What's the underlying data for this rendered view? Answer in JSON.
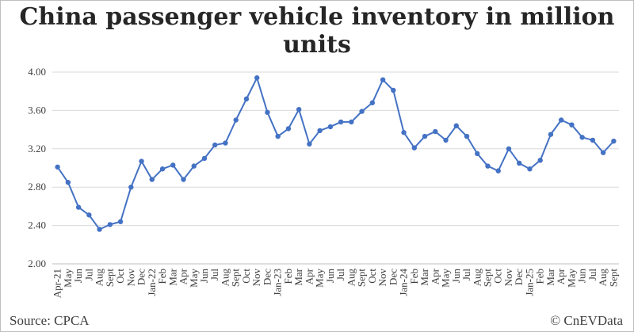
{
  "title": "China passenger vehicle inventory in million units",
  "source": "Source: CPCA",
  "credit": "© CnEVData",
  "colors": {
    "line": "#4472c4",
    "grid": "#d9d9d9",
    "text": "#404040"
  },
  "chart_data": {
    "type": "line",
    "title": "China passenger vehicle inventory in million units",
    "xlabel": "",
    "ylabel": "",
    "ylim": [
      2.0,
      4.0
    ],
    "yticks": [
      "2.00",
      "2.40",
      "2.80",
      "3.20",
      "3.60",
      "4.00"
    ],
    "grid": true,
    "categories": [
      "Apr-21",
      "May",
      "Jun",
      "Jul",
      "Aug",
      "Sept",
      "Oct",
      "Nov",
      "Dec",
      "Jan-22",
      "Feb",
      "Mar",
      "Apr",
      "May",
      "Jun",
      "Jul",
      "Aug",
      "Sept",
      "Oct",
      "Nov",
      "Dec",
      "Jan-23",
      "Feb",
      "Mar",
      "Apr",
      "May",
      "Jun",
      "Jul",
      "Aug",
      "Sept",
      "Oct",
      "Nov",
      "Dec",
      "Jan-24",
      "Feb",
      "Mar",
      "Apr",
      "May",
      "Jun",
      "Jul",
      "Aug",
      "Sept",
      "Oct",
      "Nov",
      "Dec",
      "Jan-25",
      "Feb",
      "Mar",
      "Apr",
      "May",
      "Jun",
      "Jul",
      "Aug",
      "Sept"
    ],
    "values": [
      3.01,
      2.85,
      2.59,
      2.51,
      2.36,
      2.41,
      2.44,
      2.8,
      3.07,
      2.88,
      2.99,
      3.03,
      2.88,
      3.02,
      3.1,
      3.24,
      3.26,
      3.5,
      3.72,
      3.94,
      3.58,
      3.33,
      3.41,
      3.61,
      3.25,
      3.39,
      3.43,
      3.48,
      3.48,
      3.59,
      3.68,
      3.92,
      3.81,
      3.37,
      3.21,
      3.33,
      3.38,
      3.29,
      3.44,
      3.33,
      3.15,
      3.02,
      2.97,
      3.2,
      3.05,
      2.99,
      3.08,
      3.35,
      3.5,
      3.45,
      3.32,
      3.29,
      3.16,
      3.28
    ]
  }
}
